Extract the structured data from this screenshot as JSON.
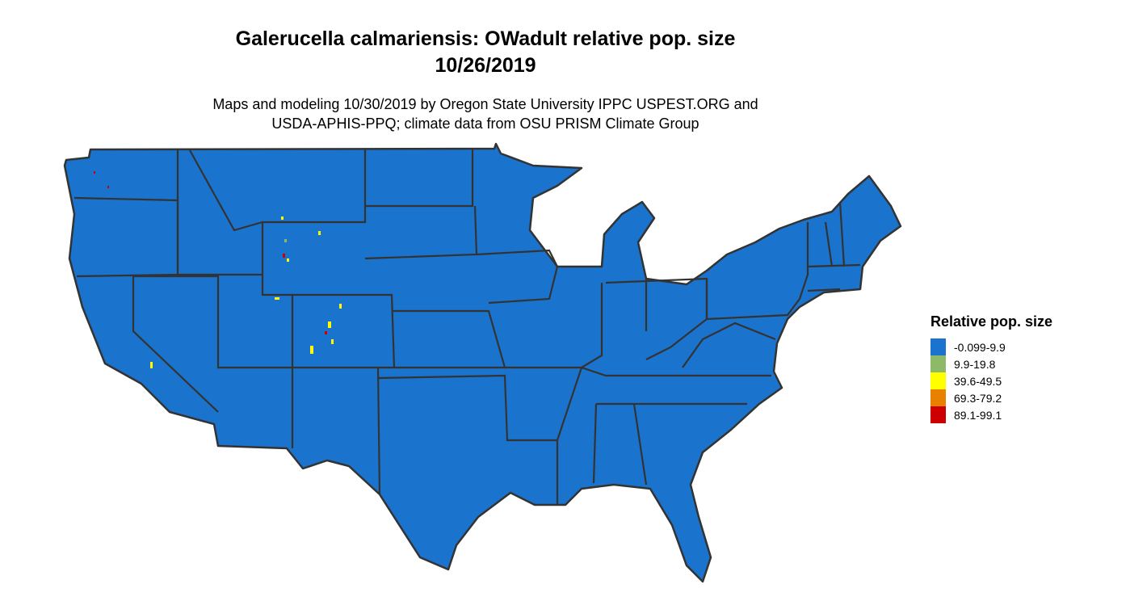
{
  "title": "Galerucella calmariensis: OWadult relative pop. size",
  "date": "10/26/2019",
  "subtitle_line1": "Maps and modeling 10/30/2019 by Oregon State University IPPC USPEST.ORG and",
  "subtitle_line2": "USDA-APHIS-PPQ; climate data from OSU PRISM Climate Group",
  "map": {
    "region": "Contiguous United States",
    "fill_color": "#1a73cc",
    "border_color": "#333333"
  },
  "legend": {
    "title": "Relative pop. size",
    "items": [
      {
        "label": "-0.099-9.9",
        "color": "#1a73cc"
      },
      {
        "label": "9.9-19.8",
        "color": "#8cba68"
      },
      {
        "label": "39.6-49.5",
        "color": "#ffff00"
      },
      {
        "label": "69.3-79.2",
        "color": "#e88000"
      },
      {
        "label": "89.1-99.1",
        "color": "#cc0000"
      }
    ]
  }
}
